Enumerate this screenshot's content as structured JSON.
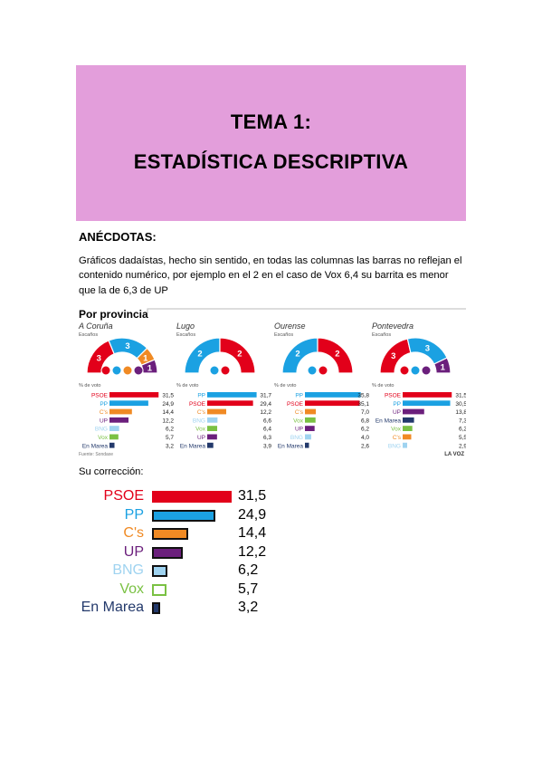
{
  "title": {
    "line1": "TEMA 1:",
    "line2": "ESTADÍSTICA DESCRIPTIVA"
  },
  "section_heading": "ANÉCDOTAS:",
  "paragraph": "Gráficos dadaístas, hecho sin sentido, en todas las columnas las barras no reflejan el contenido numérico, por ejemplo en el 2 en el caso de Vox 6,4 su barrita es menor que la de 6,3 de UP",
  "correction_label": "Su corrección:",
  "party_colors": {
    "PSOE": "#e2001a",
    "PP": "#1ba1e2",
    "C's": "#f08a24",
    "UP": "#6b1f7c",
    "BNG": "#9fd3f0",
    "Vox": "#7ac143",
    "En Marea": "#23396b"
  },
  "infographic": {
    "header": "Por provincia",
    "seats_label": "Escaños",
    "vote_label": "% de voto",
    "source": "Fuente: Sondaxe",
    "brand": "LA VOZ",
    "provinces": [
      {
        "name": "A Coruña",
        "seats": [
          {
            "party": "PSOE",
            "n": 3
          },
          {
            "party": "PP",
            "n": 3
          },
          {
            "party": "C's",
            "n": 1
          },
          {
            "party": "UP",
            "n": 1
          }
        ],
        "rows": [
          {
            "party": "PSOE",
            "value": "31,5"
          },
          {
            "party": "PP",
            "value": "24,9"
          },
          {
            "party": "C's",
            "value": "14,4"
          },
          {
            "party": "UP",
            "value": "12,2"
          },
          {
            "party": "BNG",
            "value": "6,2"
          },
          {
            "party": "Vox",
            "value": "5,7"
          },
          {
            "party": "En Marea",
            "value": "3,2"
          }
        ]
      },
      {
        "name": "Lugo",
        "seats": [
          {
            "party": "PP",
            "n": 2
          },
          {
            "party": "PSOE",
            "n": 2
          }
        ],
        "rows": [
          {
            "party": "PP",
            "value": "31,7"
          },
          {
            "party": "PSOE",
            "value": "29,4"
          },
          {
            "party": "C's",
            "value": "12,2"
          },
          {
            "party": "BNG",
            "value": "6,6"
          },
          {
            "party": "Vox",
            "value": "6,4"
          },
          {
            "party": "UP",
            "value": "6,3"
          },
          {
            "party": "En Marea",
            "value": "3,9"
          }
        ]
      },
      {
        "name": "Ourense",
        "seats": [
          {
            "party": "PP",
            "n": 2
          },
          {
            "party": "PSOE",
            "n": 2
          }
        ],
        "rows": [
          {
            "party": "PP",
            "value": "35,8"
          },
          {
            "party": "PSOE",
            "value": "35,1"
          },
          {
            "party": "C's",
            "value": "7,0"
          },
          {
            "party": "Vox",
            "value": "6,8"
          },
          {
            "party": "UP",
            "value": "6,2"
          },
          {
            "party": "BNG",
            "value": "4,0"
          },
          {
            "party": "En Marea",
            "value": "2,6"
          }
        ]
      },
      {
        "name": "Pontevedra",
        "seats": [
          {
            "party": "PSOE",
            "n": 3
          },
          {
            "party": "PP",
            "n": 3
          },
          {
            "party": "UP",
            "n": 1
          }
        ],
        "rows": [
          {
            "party": "PSOE",
            "value": "31,5"
          },
          {
            "party": "PP",
            "value": "30,5"
          },
          {
            "party": "UP",
            "value": "13,8"
          },
          {
            "party": "En Marea",
            "value": "7,3"
          },
          {
            "party": "Vox",
            "value": "6,2"
          },
          {
            "party": "C's",
            "value": "5,5"
          },
          {
            "party": "BNG",
            "value": "2,9"
          }
        ]
      }
    ]
  },
  "correction": [
    {
      "party": "PSOE",
      "value": "31,5"
    },
    {
      "party": "PP",
      "value": "24,9"
    },
    {
      "party": "C's",
      "value": "14,4"
    },
    {
      "party": "UP",
      "value": "12,2"
    },
    {
      "party": "BNG",
      "value": "6,2"
    },
    {
      "party": "Vox",
      "value": "5,7"
    },
    {
      "party": "En Marea",
      "value": "3,2"
    }
  ]
}
